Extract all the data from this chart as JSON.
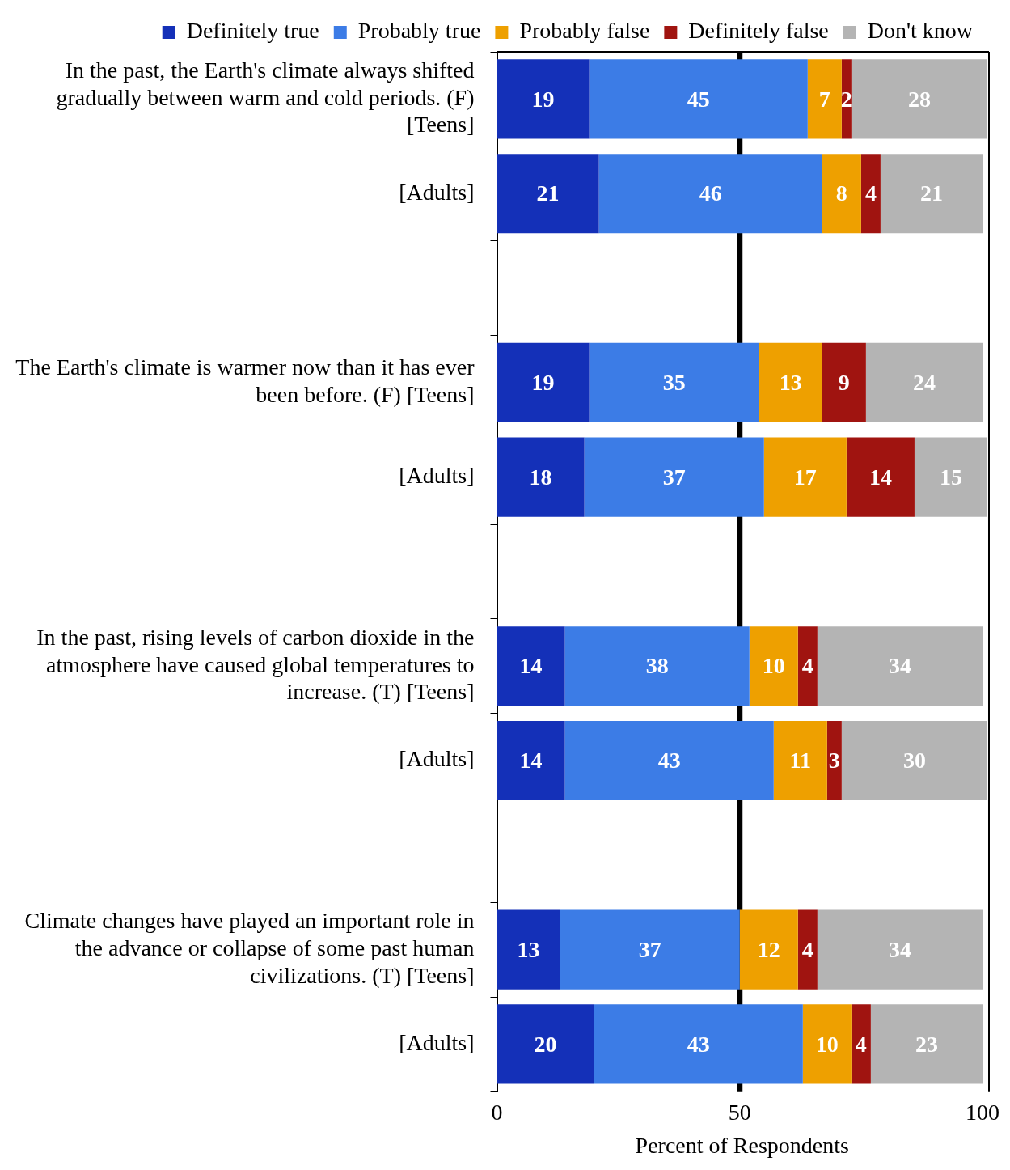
{
  "chart_data": {
    "type": "bar",
    "orientation": "horizontal",
    "stacked": true,
    "data_labels": true,
    "legend": "top",
    "grid": false,
    "xlabel": "Percent of Respondents",
    "xlim": [
      0,
      101
    ],
    "xticks": [
      0,
      50,
      100
    ],
    "categories": [
      "In the past, the Earth's climate always shifted gradually between warm and cold periods. (F) [Teens]",
      "[Adults]",
      null,
      "The Earth's climate is warmer now than it has ever been before. (F) [Teens]",
      "[Adults]",
      null,
      "In the past, rising levels of carbon dioxide in the atmosphere have caused global temperatures to increase. (T) [Teens]",
      "[Adults]",
      null,
      "Climate changes have played an important role in the advance or collapse of some past human civilizations. (T) [Teens]",
      "[Adults]"
    ],
    "series": [
      {
        "name": "Definitely true",
        "color": "#1430b8",
        "values": [
          19,
          21,
          null,
          19,
          18,
          null,
          14,
          14,
          null,
          13,
          20
        ]
      },
      {
        "name": "Probably true",
        "color": "#3c7ce6",
        "values": [
          45,
          46,
          null,
          35,
          37,
          null,
          38,
          43,
          null,
          37,
          43
        ]
      },
      {
        "name": "Probably false",
        "color": "#eea000",
        "values": [
          7,
          8,
          null,
          13,
          17,
          null,
          10,
          11,
          null,
          12,
          10
        ]
      },
      {
        "name": "Definitely false",
        "color": "#a01410",
        "values": [
          2,
          4,
          null,
          9,
          14,
          null,
          4,
          3,
          null,
          4,
          4
        ]
      },
      {
        "name": "Don't know",
        "color": "#b4b4b4",
        "values": [
          28,
          21,
          null,
          24,
          15,
          null,
          34,
          30,
          null,
          34,
          23
        ]
      }
    ],
    "ref_lines": [
      {
        "axis": "x",
        "value": 50,
        "color": "#000000"
      }
    ]
  }
}
